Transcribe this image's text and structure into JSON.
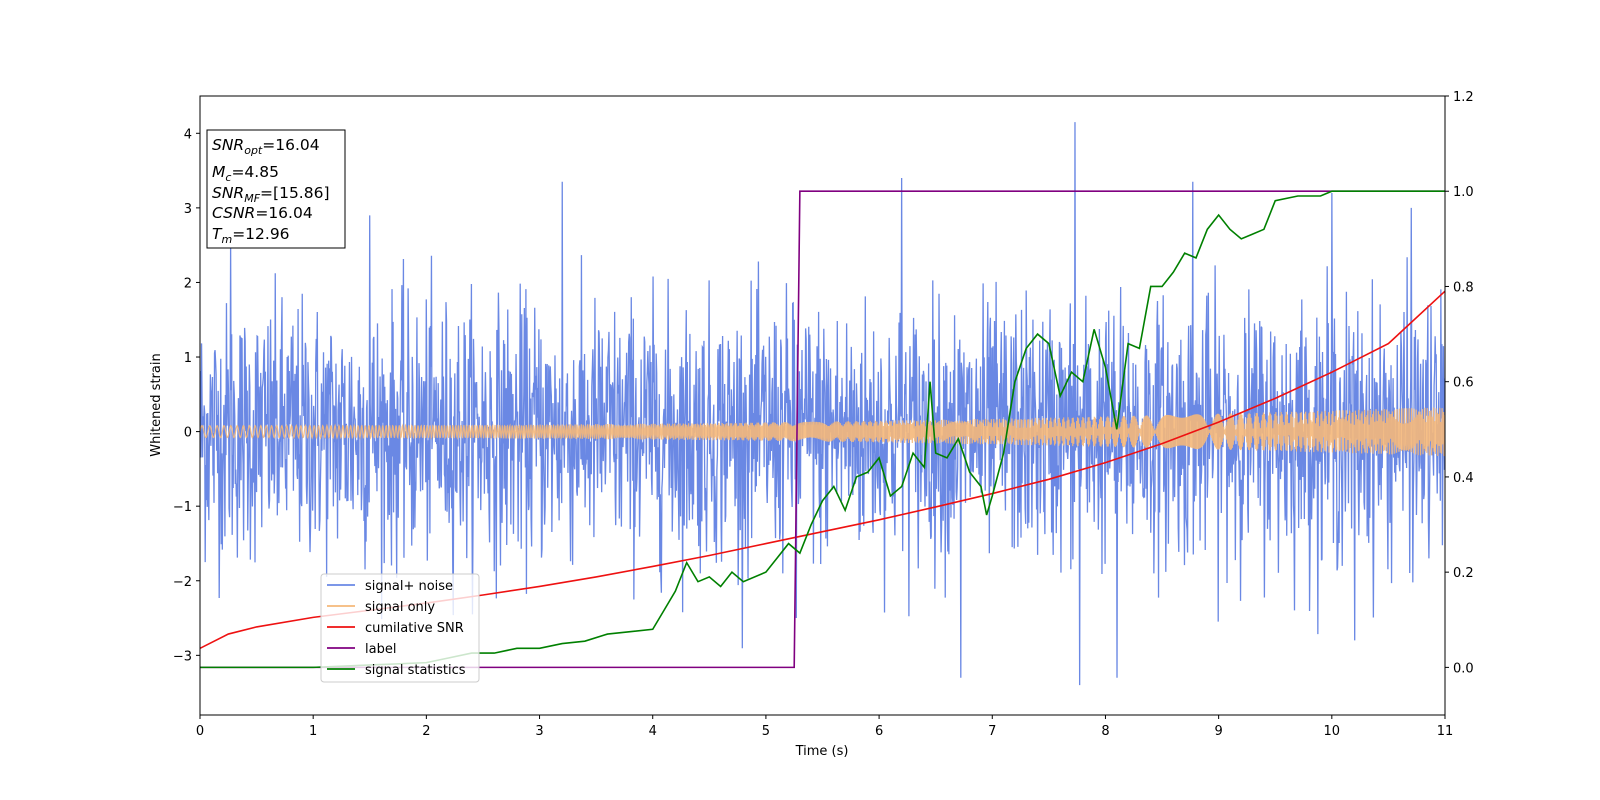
{
  "chart_data": {
    "type": "line",
    "xlabel": "Time (s)",
    "ylabel": "Whitened strain",
    "xlim": [
      0,
      11
    ],
    "ylim": [
      -3.8,
      4.5
    ],
    "y2lim": [
      -0.1,
      1.2
    ],
    "xticks": [
      0,
      1,
      2,
      3,
      4,
      5,
      6,
      7,
      8,
      9,
      10,
      11
    ],
    "yticks": [
      -3,
      -2,
      -1,
      0,
      1,
      2,
      3,
      4
    ],
    "y2ticks": [
      0.0,
      0.2,
      0.4,
      0.6,
      0.8,
      1.0,
      1.2
    ],
    "grid": false,
    "legend_position": "lower-left",
    "info_box": {
      "lines": [
        {
          "base": "SNR",
          "sub": "opt",
          "value": "=16.04"
        },
        {
          "base": "M",
          "sub": "c",
          "value": "=4.85"
        },
        {
          "base": "SNR",
          "sub": "MF",
          "value": "=[15.86]"
        },
        {
          "base": "CSNR",
          "sub": "",
          "value": "=16.04"
        },
        {
          "base": "T",
          "sub": "m",
          "value": "=12.96"
        }
      ]
    },
    "series": [
      {
        "name": "signal+ noise",
        "color": "#6a88e4",
        "axis": "left",
        "kind": "noise",
        "sigma": 0.85,
        "spikes": [
          [
            0.27,
            2.5
          ],
          [
            1.5,
            2.9
          ],
          [
            3.2,
            3.35
          ],
          [
            6.2,
            3.4
          ],
          [
            6.72,
            -3.3
          ],
          [
            7.73,
            4.15
          ],
          [
            7.77,
            -3.4
          ],
          [
            8.1,
            -3.3
          ],
          [
            8.77,
            3.35
          ],
          [
            10.0,
            3.2
          ],
          [
            10.7,
            3.0
          ],
          [
            10.2,
            -2.8
          ],
          [
            5.25,
            1.5
          ],
          [
            5.27,
            -2.5
          ]
        ]
      },
      {
        "name": "signal only",
        "color": "#f5b87a",
        "axis": "left",
        "kind": "chirp",
        "amplitude_start": 0.08,
        "amplitude_end": 0.33
      },
      {
        "name": "cumilative SNR",
        "color": "#ee1111",
        "axis": "right",
        "x": [
          0,
          0.25,
          0.5,
          1,
          1.5,
          2,
          2.5,
          3,
          3.5,
          4,
          4.5,
          5,
          5.5,
          6,
          6.5,
          7,
          7.5,
          8,
          8.5,
          9,
          9.5,
          10,
          10.5,
          11
        ],
        "y": [
          0.04,
          0.07,
          0.085,
          0.105,
          0.12,
          0.135,
          0.152,
          0.17,
          0.19,
          0.212,
          0.235,
          0.26,
          0.285,
          0.31,
          0.337,
          0.365,
          0.395,
          0.43,
          0.47,
          0.515,
          0.565,
          0.62,
          0.68,
          0.79
        ]
      },
      {
        "name": "label",
        "color": "#800080",
        "axis": "right",
        "x": [
          0,
          5.25,
          5.3,
          11
        ],
        "y": [
          0,
          0,
          1,
          1
        ]
      },
      {
        "name": "signal statistics",
        "color": "#008000",
        "axis": "right",
        "x": [
          0,
          1,
          2,
          2.2,
          2.4,
          2.6,
          2.8,
          3.0,
          3.2,
          3.4,
          3.6,
          3.8,
          4.0,
          4.1,
          4.2,
          4.3,
          4.4,
          4.5,
          4.6,
          4.7,
          4.8,
          5.0,
          5.1,
          5.2,
          5.3,
          5.4,
          5.5,
          5.6,
          5.7,
          5.8,
          5.9,
          6.0,
          6.1,
          6.2,
          6.3,
          6.4,
          6.45,
          6.5,
          6.6,
          6.7,
          6.8,
          6.9,
          6.95,
          7.0,
          7.1,
          7.2,
          7.3,
          7.4,
          7.5,
          7.6,
          7.7,
          7.8,
          7.9,
          8.0,
          8.1,
          8.2,
          8.3,
          8.4,
          8.5,
          8.6,
          8.7,
          8.8,
          8.9,
          9.0,
          9.1,
          9.2,
          9.3,
          9.4,
          9.5,
          9.7,
          9.9,
          10.0,
          10.3,
          10.6,
          11.0
        ],
        "y": [
          0.0,
          0.0,
          0.01,
          0.02,
          0.03,
          0.03,
          0.04,
          0.04,
          0.05,
          0.055,
          0.07,
          0.075,
          0.08,
          0.12,
          0.16,
          0.22,
          0.18,
          0.19,
          0.17,
          0.2,
          0.18,
          0.2,
          0.23,
          0.26,
          0.24,
          0.3,
          0.35,
          0.38,
          0.33,
          0.4,
          0.41,
          0.44,
          0.36,
          0.38,
          0.45,
          0.42,
          0.6,
          0.45,
          0.44,
          0.48,
          0.41,
          0.38,
          0.32,
          0.36,
          0.45,
          0.6,
          0.67,
          0.7,
          0.68,
          0.57,
          0.62,
          0.6,
          0.71,
          0.63,
          0.5,
          0.68,
          0.67,
          0.8,
          0.8,
          0.83,
          0.87,
          0.86,
          0.92,
          0.95,
          0.92,
          0.9,
          0.91,
          0.92,
          0.98,
          0.99,
          0.99,
          1.0,
          1.0,
          1.0,
          1.0
        ]
      }
    ]
  }
}
